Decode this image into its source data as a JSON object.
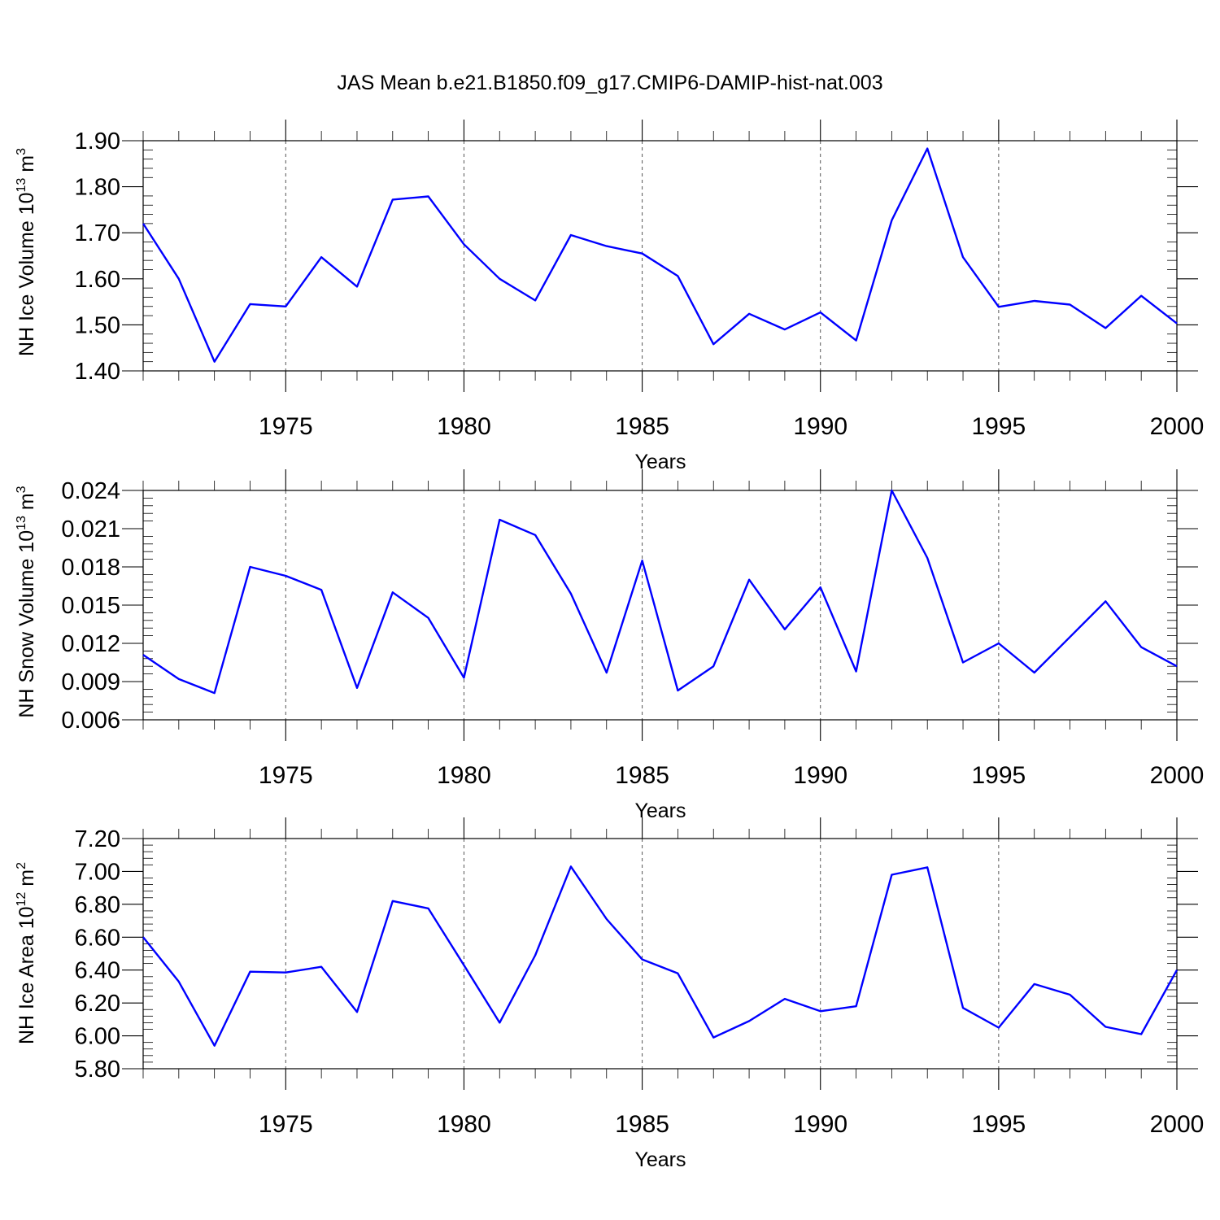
{
  "title": "JAS Mean b.e21.B1850.f09_g17.CMIP6-DAMIP-hist-nat.003",
  "line_color": "#0000ff",
  "chart_data": [
    {
      "type": "line",
      "ylabel": "NH Ice Volume 10",
      "ylabel_sup": "13",
      "ylabel_unit": " m",
      "ylabel_unit_sup": "3",
      "xlabel": "Years",
      "xlim": [
        1971,
        2000
      ],
      "ylim": [
        1.4,
        1.9
      ],
      "yticks": [
        1.4,
        1.5,
        1.6,
        1.7,
        1.8,
        1.9
      ],
      "ytick_labels": [
        "1.40",
        "1.50",
        "1.60",
        "1.70",
        "1.80",
        "1.90"
      ],
      "xticks": [
        1975,
        1980,
        1985,
        1990,
        1995,
        2000
      ],
      "xtick_labels": [
        "1975",
        "1980",
        "1985",
        "1990",
        "1995",
        "2000"
      ],
      "x": [
        1971,
        1972,
        1973,
        1974,
        1975,
        1976,
        1977,
        1978,
        1979,
        1980,
        1981,
        1982,
        1983,
        1984,
        1985,
        1986,
        1987,
        1988,
        1989,
        1990,
        1991,
        1992,
        1993,
        1994,
        1995,
        1996,
        1997,
        1998,
        1999,
        2000
      ],
      "series": [
        {
          "values": [
            1.72,
            1.6,
            1.42,
            1.545,
            1.54,
            1.647,
            1.583,
            1.772,
            1.779,
            1.675,
            1.6,
            1.553,
            1.695,
            1.671,
            1.655,
            1.606,
            1.458,
            1.524,
            1.49,
            1.527,
            1.466,
            1.727,
            1.883,
            1.647,
            1.539,
            1.552,
            1.544,
            1.493,
            1.563,
            1.503
          ]
        }
      ]
    },
    {
      "type": "line",
      "ylabel": "NH Snow Volume 10",
      "ylabel_sup": "13",
      "ylabel_unit": " m",
      "ylabel_unit_sup": "3",
      "xlabel": "Years",
      "xlim": [
        1971,
        2000
      ],
      "ylim": [
        0.006,
        0.024
      ],
      "yticks": [
        0.006,
        0.009,
        0.012,
        0.015,
        0.018,
        0.021,
        0.024
      ],
      "ytick_labels": [
        "0.006",
        "0.009",
        "0.012",
        "0.015",
        "0.018",
        "0.021",
        "0.024"
      ],
      "xticks": [
        1975,
        1980,
        1985,
        1990,
        1995,
        2000
      ],
      "xtick_labels": [
        "1975",
        "1980",
        "1985",
        "1990",
        "1995",
        "2000"
      ],
      "x": [
        1971,
        1972,
        1973,
        1974,
        1975,
        1976,
        1977,
        1978,
        1979,
        1980,
        1981,
        1982,
        1983,
        1984,
        1985,
        1986,
        1987,
        1988,
        1989,
        1990,
        1991,
        1992,
        1993,
        1994,
        1995,
        1996,
        1997,
        1998,
        1999,
        2000
      ],
      "series": [
        {
          "values": [
            0.0111,
            0.0092,
            0.0081,
            0.018,
            0.0173,
            0.0162,
            0.0085,
            0.016,
            0.014,
            0.0093,
            0.0217,
            0.0205,
            0.0159,
            0.0097,
            0.0185,
            0.0083,
            0.0102,
            0.017,
            0.0131,
            0.0164,
            0.0098,
            0.024,
            0.0187,
            0.0105,
            0.012,
            0.0097,
            0.0125,
            0.0153,
            0.0117,
            0.0102
          ]
        }
      ]
    },
    {
      "type": "line",
      "ylabel": "NH Ice Area 10",
      "ylabel_sup": "12",
      "ylabel_unit": " m",
      "ylabel_unit_sup": "2",
      "xlabel": "Years",
      "xlim": [
        1971,
        2000
      ],
      "ylim": [
        5.8,
        7.2
      ],
      "yticks": [
        5.8,
        6.0,
        6.2,
        6.4,
        6.6,
        6.8,
        7.0,
        7.2
      ],
      "ytick_labels": [
        "5.80",
        "6.00",
        "6.20",
        "6.40",
        "6.60",
        "6.80",
        "7.00",
        "7.20"
      ],
      "xticks": [
        1975,
        1980,
        1985,
        1990,
        1995,
        2000
      ],
      "xtick_labels": [
        "1975",
        "1980",
        "1985",
        "1990",
        "1995",
        "2000"
      ],
      "x": [
        1971,
        1972,
        1973,
        1974,
        1975,
        1976,
        1977,
        1978,
        1979,
        1980,
        1981,
        1982,
        1983,
        1984,
        1985,
        1986,
        1987,
        1988,
        1989,
        1990,
        1991,
        1992,
        1993,
        1994,
        1995,
        1996,
        1997,
        1998,
        1999,
        2000
      ],
      "series": [
        {
          "values": [
            6.6,
            6.33,
            5.94,
            6.39,
            6.385,
            6.42,
            6.145,
            6.82,
            6.775,
            6.43,
            6.08,
            6.49,
            7.03,
            6.71,
            6.465,
            6.38,
            5.99,
            6.09,
            6.225,
            6.15,
            6.18,
            6.98,
            7.025,
            6.17,
            6.05,
            6.315,
            6.25,
            6.055,
            6.01,
            6.4
          ]
        }
      ]
    }
  ]
}
